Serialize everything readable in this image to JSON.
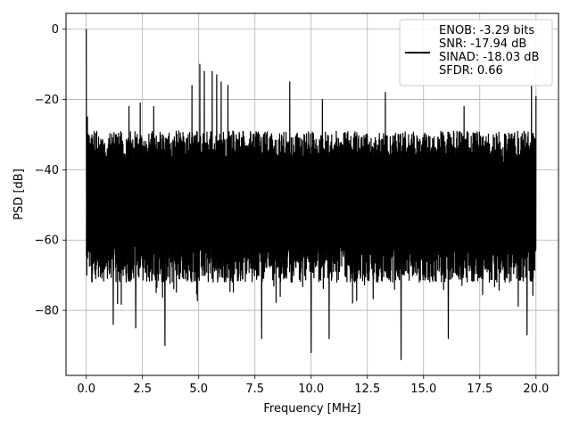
{
  "chart_data": {
    "type": "line",
    "xlabel": "Frequency [MHz]",
    "ylabel": "PSD [dB]",
    "xlim": [
      -0.9,
      21.0
    ],
    "ylim": [
      -98.5,
      4.5
    ],
    "xticks": [
      0.0,
      2.5,
      5.0,
      7.5,
      10.0,
      12.5,
      15.0,
      17.5,
      20.0
    ],
    "xtick_labels": [
      "0.0",
      "2.5",
      "5.0",
      "7.5",
      "10.0",
      "12.5",
      "15.0",
      "17.5",
      "20.0"
    ],
    "yticks": [
      0,
      -20,
      -40,
      -60,
      -80
    ],
    "ytick_labels": [
      "0",
      "−20",
      "−40",
      "−60",
      "−80"
    ],
    "grid": true,
    "legend_position": "top-right",
    "series": [
      {
        "color": "#000000",
        "x_range": [
          0.0,
          20.0
        ],
        "noise_floor_upper_db": -29,
        "noise_floor_lower_db": -72,
        "fundamental": {
          "x": 0.0,
          "y": 0.0
        },
        "spurs": [
          {
            "x": 0.05,
            "y": -25
          },
          {
            "x": 1.9,
            "y": -22
          },
          {
            "x": 2.4,
            "y": -21
          },
          {
            "x": 3.0,
            "y": -22
          },
          {
            "x": 4.7,
            "y": -16
          },
          {
            "x": 5.05,
            "y": -10
          },
          {
            "x": 5.25,
            "y": -12
          },
          {
            "x": 5.6,
            "y": -12
          },
          {
            "x": 5.8,
            "y": -13
          },
          {
            "x": 6.0,
            "y": -15
          },
          {
            "x": 6.3,
            "y": -16
          },
          {
            "x": 9.05,
            "y": -15
          },
          {
            "x": 10.5,
            "y": -20
          },
          {
            "x": 13.3,
            "y": -18
          },
          {
            "x": 16.8,
            "y": -22
          },
          {
            "x": 19.8,
            "y": -16
          },
          {
            "x": 20.0,
            "y": -19
          }
        ],
        "dips": [
          {
            "x": 1.2,
            "y": -84
          },
          {
            "x": 2.2,
            "y": -85
          },
          {
            "x": 3.5,
            "y": -90
          },
          {
            "x": 7.8,
            "y": -88
          },
          {
            "x": 10.0,
            "y": -92
          },
          {
            "x": 10.8,
            "y": -88
          },
          {
            "x": 14.0,
            "y": -94
          },
          {
            "x": 16.1,
            "y": -88
          },
          {
            "x": 19.6,
            "y": -87
          }
        ]
      }
    ],
    "legend": {
      "entries": [
        "ENOB: -3.29 bits",
        "SNR: -17.94 dB",
        "SINAD: -18.03 dB",
        "SFDR: 0.66"
      ]
    }
  }
}
